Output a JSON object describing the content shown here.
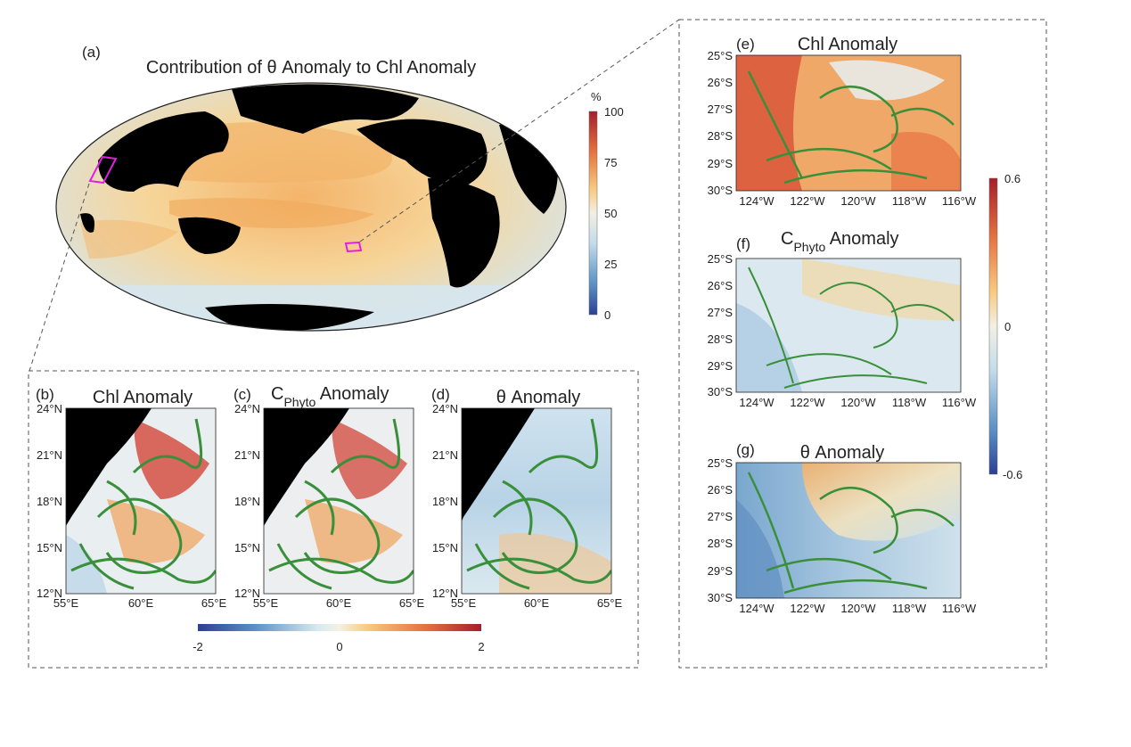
{
  "global_map": {
    "panel_label": "(a)",
    "title": "Contribution of θ Anomaly to Chl Anomaly",
    "colorbar": {
      "unit": "%",
      "ticks": [
        "100",
        "75",
        "50",
        "25",
        "0"
      ],
      "colors": [
        "#2c3f95",
        "#3a66ad",
        "#5b90c4",
        "#8bb6d8",
        "#c2dbea",
        "#e6efef",
        "#f5e3b4",
        "#f8c97e",
        "#f4a259",
        "#e5733f",
        "#cc4430",
        "#a51e2c"
      ]
    }
  },
  "arabian_panels": {
    "panels": [
      {
        "label": "(b)",
        "title": "Chl Anomaly"
      },
      {
        "label": "(c)",
        "title_main": "C",
        "title_sub": "Phyto",
        "title_rest": " Anomaly"
      },
      {
        "label": "(d)",
        "title": "θ Anomaly"
      }
    ],
    "y_ticks": [
      "24°N",
      "21°N",
      "18°N",
      "15°N",
      "12°N"
    ],
    "x_ticks": [
      "55°E",
      "60°E",
      "65°E"
    ],
    "colorbar": {
      "ticks": [
        "-2",
        "0",
        "2"
      ]
    }
  },
  "pacific_panels": {
    "panels": [
      {
        "label": "(e)",
        "title": "Chl Anomaly"
      },
      {
        "label": "(f)",
        "title_main": "C",
        "title_sub": "Phyto",
        "title_rest": " Anomaly"
      },
      {
        "label": "(g)",
        "title": "θ Anomaly"
      }
    ],
    "y_ticks": [
      "25°S",
      "26°S",
      "27°S",
      "28°S",
      "29°S",
      "30°S"
    ],
    "x_ticks": [
      "124°W",
      "122°W",
      "120°W",
      "118°W",
      "116°W"
    ],
    "colorbar": {
      "ticks": [
        "0.6",
        "0",
        "-0.6"
      ]
    }
  },
  "colors": {
    "land": "#000000",
    "streamline": "#3a8f3a",
    "highlight_box": "#e020e0",
    "dashed_frame": "#555555"
  }
}
